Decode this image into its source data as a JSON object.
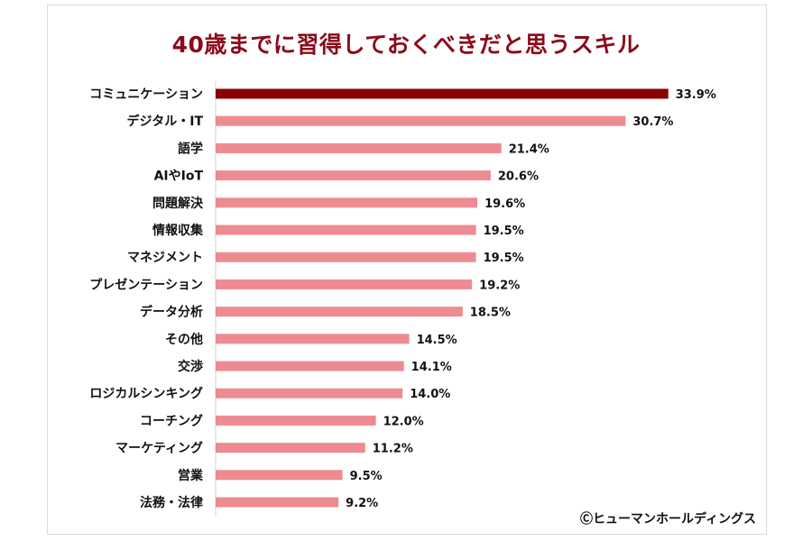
{
  "chart_data": {
    "type": "bar",
    "orientation": "horizontal",
    "title": "40歳までに習得しておくべきだと思うスキル",
    "categories": [
      "コミュニケーション",
      "デジタル・IT",
      "語学",
      "AIやIoT",
      "問題解決",
      "情報収集",
      "マネジメント",
      "プレゼンテーション",
      "データ分析",
      "その他",
      "交渉",
      "ロジカルシンキング",
      "コーチング",
      "マーケティング",
      "営業",
      "法務・法律"
    ],
    "values": [
      33.9,
      30.7,
      21.4,
      20.6,
      19.6,
      19.5,
      19.5,
      19.2,
      18.5,
      14.5,
      14.1,
      14.0,
      12.0,
      11.2,
      9.5,
      9.2
    ],
    "value_labels": [
      "33.9%",
      "30.7%",
      "21.4%",
      "20.6%",
      "19.6%",
      "19.5%",
      "19.5%",
      "19.2%",
      "18.5%",
      "14.5%",
      "14.1%",
      "14.0%",
      "12.0%",
      "11.2%",
      "9.5%",
      "9.2%"
    ],
    "unit": "%",
    "xlabel": "",
    "ylabel": "",
    "xlim": [
      0,
      34
    ],
    "grid": false,
    "colors": {
      "highlight": "#8b0000",
      "default": "#ee8a91",
      "title": "#8b0a1a"
    }
  },
  "credit": "Ⓒヒューマンホールディングス"
}
